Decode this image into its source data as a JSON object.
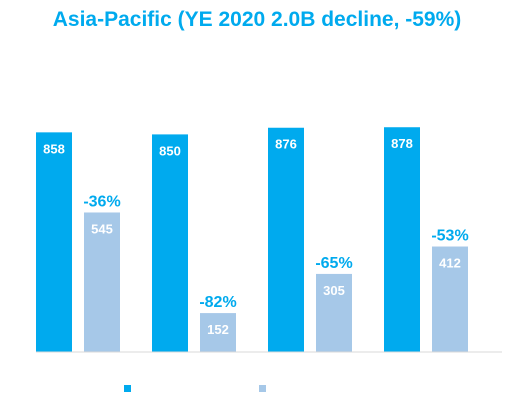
{
  "chart_data": {
    "type": "bar",
    "title": "Asia-Pacific (YE 2020 2.0B decline, -59%)",
    "categories": [
      "",
      "",
      "",
      ""
    ],
    "series": [
      {
        "values": [
          858,
          850,
          876,
          878
        ],
        "color": "#00aaee"
      },
      {
        "values": [
          545,
          152,
          305,
          412
        ],
        "color": "#a6c8e8"
      }
    ],
    "changes": [
      "-36%",
      "-82%",
      "-65%",
      "-53%"
    ],
    "ylim": [
      0,
      1000
    ],
    "grid": false,
    "legend": "bottom-left"
  }
}
